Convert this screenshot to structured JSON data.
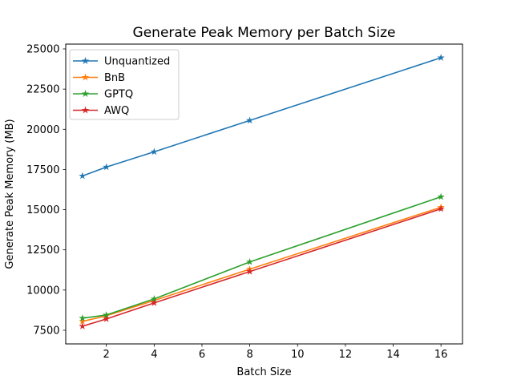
{
  "figure": {
    "title": "Generate Peak Memory per Batch Size",
    "xlabel": "Batch Size",
    "ylabel": "Generate Peak Memory (MB)",
    "background_color": "#ffffff",
    "axis_color": "#000000"
  },
  "chart_data": {
    "type": "line",
    "title": "Generate Peak Memory per Batch Size",
    "xlabel": "Batch Size",
    "ylabel": "Generate Peak Memory (MB)",
    "x": [
      1,
      2,
      4,
      8,
      16
    ],
    "series": [
      {
        "name": "Unquantized",
        "color": "#1f77b4",
        "marker": "star",
        "values": [
          17100,
          17650,
          18600,
          20550,
          24450
        ]
      },
      {
        "name": "BnB",
        "color": "#ff7f0e",
        "marker": "star",
        "values": [
          8050,
          8400,
          9350,
          11300,
          15150
        ]
      },
      {
        "name": "GPTQ",
        "color": "#2ca02c",
        "marker": "star",
        "values": [
          8250,
          8450,
          9450,
          11750,
          15800
        ]
      },
      {
        "name": "AWQ",
        "color": "#d62728",
        "marker": "star",
        "values": [
          7750,
          8200,
          9200,
          11150,
          15050
        ]
      }
    ],
    "xticks": [
      2,
      4,
      6,
      8,
      10,
      12,
      14,
      16
    ],
    "yticks": [
      7500,
      10000,
      12500,
      15000,
      17500,
      20000,
      22500,
      25000
    ],
    "xlim": [
      0.3,
      16.9
    ],
    "ylim": [
      6650,
      25300
    ],
    "grid": false,
    "legend": {
      "position": "upper-left",
      "entries": [
        "Unquantized",
        "BnB",
        "GPTQ",
        "AWQ"
      ]
    }
  }
}
